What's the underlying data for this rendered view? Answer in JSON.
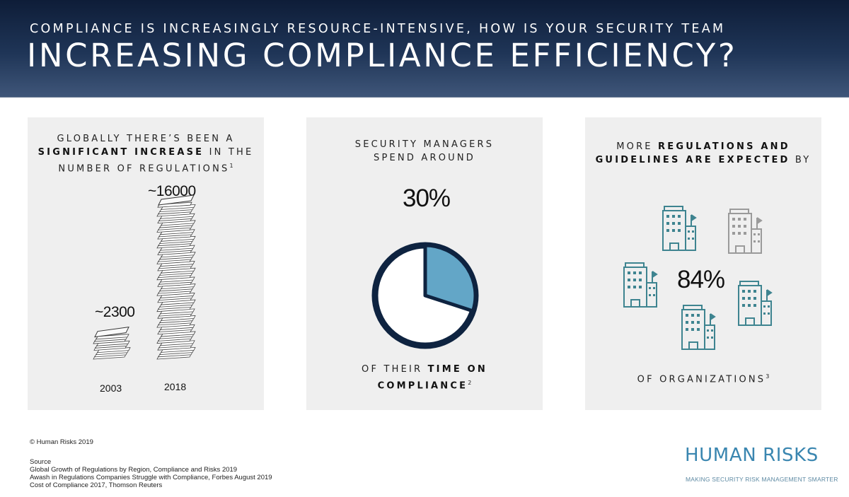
{
  "header": {
    "subtitle": "COMPLIANCE IS INCREASINGLY RESOURCE-INTENSIVE, HOW IS YOUR SECURITY TEAM",
    "title": "INCREASING COMPLIANCE EFFICIENCY?"
  },
  "panel1": {
    "line1": "GLOBALLY THERE’S BEEN A",
    "line2_bold": "SIGNIFICANT INCREASE",
    "line2_rest": " IN THE",
    "line3": "NUMBER OF REGULATIONS",
    "footnote": "1",
    "bars": [
      {
        "year": "2003",
        "label": "~2300",
        "value": 2300
      },
      {
        "year": "2018",
        "label": "~16000",
        "value": 16000
      }
    ]
  },
  "panel2": {
    "line1": "SECURITY MANAGERS",
    "line2": "SPEND AROUND",
    "percent": "30%",
    "fraction": 0.3,
    "line3": "OF THEIR ",
    "line3_bold": "TIME ON",
    "line4_bold": "COMPLIANCE",
    "footnote": "2",
    "pie_colors": {
      "slice": "#63a6c7",
      "ring": "#0e2340",
      "rest": "#ffffff"
    }
  },
  "panel3": {
    "line1_pre": "MORE ",
    "line1_bold": "REGULATIONS AND",
    "line2_bold": "GUIDELINES ARE EXPECTED",
    "line2_rest": " BY",
    "percent": "84%",
    "line3": "OF ORGANIZATIONS",
    "footnote": "3",
    "icon_colors": {
      "active": "#3e8490",
      "inactive": "#9a9a9a"
    }
  },
  "footer": {
    "copyright": "© Human Risks 2019",
    "source_label": "Source",
    "sources": [
      "Global Growth of Regulations by Region, Compliance and Risks 2019",
      "Awash in Regulations Companies Struggle with Compliance, Forbes August 2019",
      "Cost of Compliance 2017, Thomson Reuters"
    ]
  },
  "logo": {
    "name": "HUMAN RISKS",
    "tagline": "MAKING SECURITY RISK MANAGEMENT SMARTER"
  }
}
